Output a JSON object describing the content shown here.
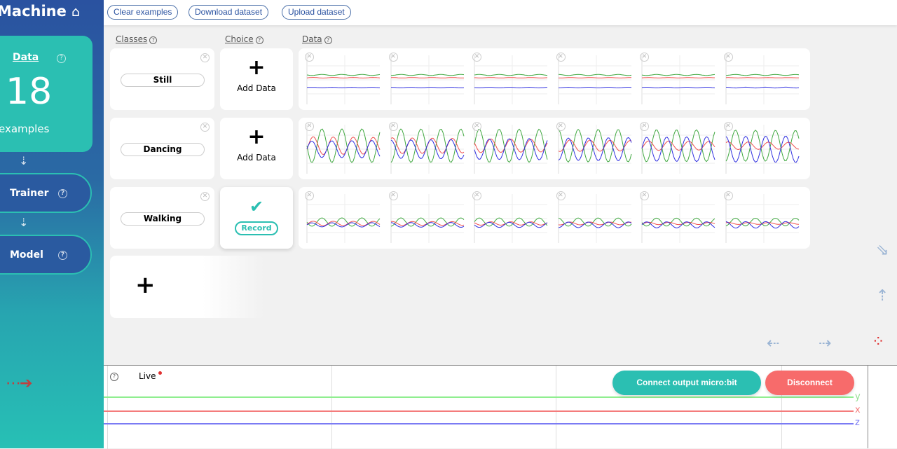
{
  "sidebar": {
    "brand": "Machine",
    "data_label": "Data",
    "data_count": "18",
    "data_unit": "examples",
    "trainer": "Trainer",
    "model": "Model",
    "help": "?"
  },
  "toolbar": {
    "clear": "Clear examples",
    "download": "Download dataset",
    "upload": "Upload dataset"
  },
  "columns": {
    "classes": "Classes",
    "choice": "Choice",
    "data": "Data"
  },
  "classes": [
    {
      "name": "Still",
      "choice_icon": "+",
      "choice_label": "Add Data",
      "pattern": "flat",
      "samples": 6
    },
    {
      "name": "Dancing",
      "choice_icon": "+",
      "choice_label": "Add Data",
      "pattern": "strong",
      "samples": 6
    },
    {
      "name": "Walking",
      "choice_icon": "✔",
      "choice_label": "Record",
      "pattern": "mild",
      "samples": 6
    }
  ],
  "add_class": "+",
  "live": {
    "label": "Live",
    "help": "?",
    "connect": "Connect output micro:bit",
    "disconnect": "Disconnect",
    "axes": [
      "y",
      "x",
      "z"
    ]
  },
  "colors": {
    "x": "#f05050",
    "y": "#40a840",
    "z": "#3030e0",
    "teal": "#2bbfb2",
    "red": "#f76b6b"
  }
}
